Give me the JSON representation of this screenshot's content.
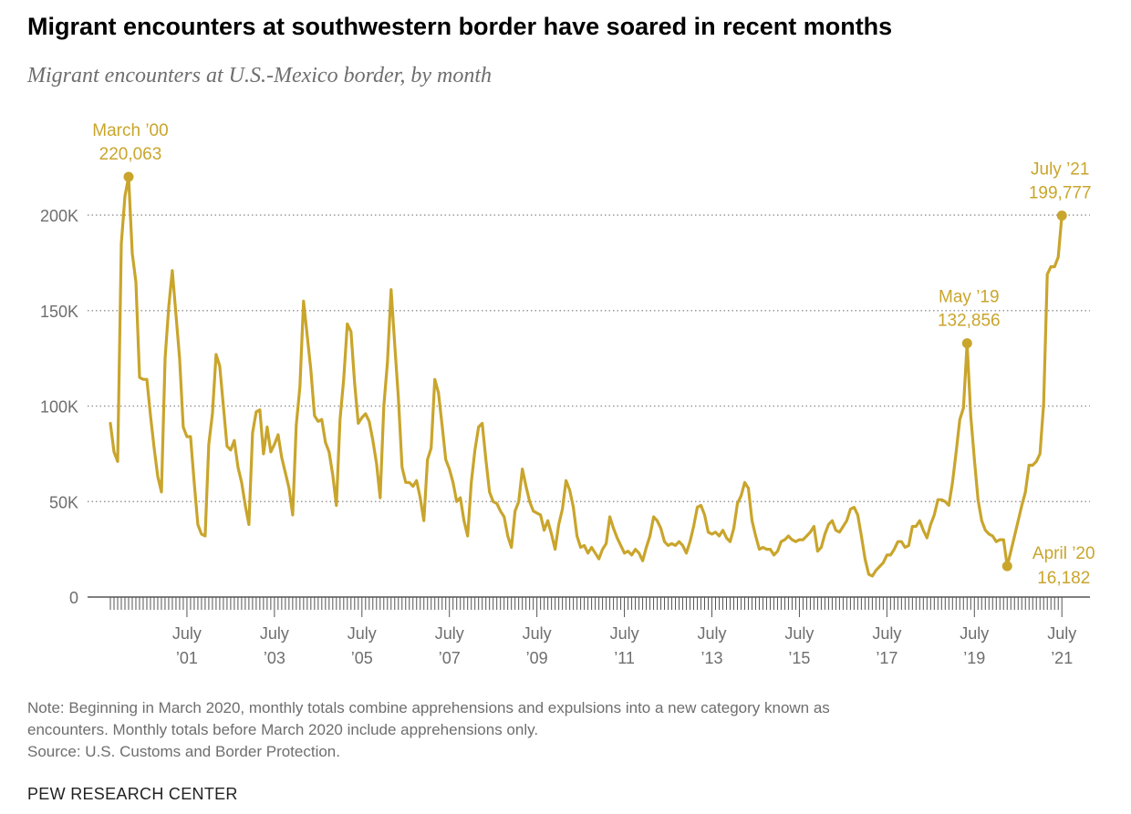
{
  "title": "Migrant encounters at southwestern border have soared in recent months",
  "subtitle": "Migrant encounters at U.S.-Mexico border, by month",
  "note_lines": [
    "Note: Beginning in March 2020, monthly totals combine apprehensions and expulsions into a new category known as",
    "encounters. Monthly totals before March 2020 include apprehensions only.",
    "Source: U.S. Customs and Border Protection."
  ],
  "brand": "PEW RESEARCH CENTER",
  "colors": {
    "line": "#c9a52c",
    "grid": "#9a9a9a",
    "axis": "#555555",
    "text": "#6e6e6e"
  },
  "chart_data": {
    "type": "line",
    "title": "Migrant encounters at southwestern border have soared in recent months",
    "subtitle": "Migrant encounters at U.S.-Mexico border, by month",
    "xlabel": "",
    "ylabel": "",
    "ylim": [
      0,
      220000
    ],
    "grid": true,
    "y_ticks": [
      {
        "value": 0,
        "label": "0"
      },
      {
        "value": 50000,
        "label": "50K"
      },
      {
        "value": 100000,
        "label": "100K"
      },
      {
        "value": 150000,
        "label": "150K"
      },
      {
        "value": 200000,
        "label": "200K"
      }
    ],
    "x_ticks": [
      {
        "month_index": 21,
        "line1": "July",
        "line2": "’01"
      },
      {
        "month_index": 45,
        "line1": "July",
        "line2": "’03"
      },
      {
        "month_index": 69,
        "line1": "July",
        "line2": "’05"
      },
      {
        "month_index": 93,
        "line1": "July",
        "line2": "’07"
      },
      {
        "month_index": 117,
        "line1": "July",
        "line2": "’09"
      },
      {
        "month_index": 141,
        "line1": "July",
        "line2": "’11"
      },
      {
        "month_index": 165,
        "line1": "July",
        "line2": "’13"
      },
      {
        "month_index": 189,
        "line1": "July",
        "line2": "’15"
      },
      {
        "month_index": 213,
        "line1": "July",
        "line2": "’17"
      },
      {
        "month_index": 237,
        "line1": "July",
        "line2": "’19"
      },
      {
        "month_index": 261,
        "line1": "July",
        "line2": "’21"
      }
    ],
    "x_start": "2000-01",
    "x_end": "2021-07",
    "series": [
      {
        "name": "Migrant encounters",
        "keypoints": [
          [
            0,
            91000
          ],
          [
            1,
            76000
          ],
          [
            2,
            71000
          ],
          [
            3,
            185000
          ],
          [
            4,
            210000
          ],
          [
            5,
            220063
          ],
          [
            6,
            180000
          ],
          [
            7,
            165000
          ],
          [
            8,
            115000
          ],
          [
            9,
            114000
          ],
          [
            10,
            114000
          ],
          [
            11,
            95000
          ],
          [
            12,
            78000
          ],
          [
            13,
            63000
          ],
          [
            14,
            55000
          ],
          [
            15,
            125000
          ],
          [
            16,
            152000
          ],
          [
            17,
            171000
          ],
          [
            18,
            148000
          ],
          [
            19,
            125000
          ],
          [
            20,
            89000
          ],
          [
            21,
            84000
          ],
          [
            22,
            84000
          ],
          [
            23,
            60000
          ],
          [
            24,
            38000
          ],
          [
            25,
            33000
          ],
          [
            26,
            32000
          ],
          [
            27,
            80000
          ],
          [
            28,
            96000
          ],
          [
            29,
            127000
          ],
          [
            30,
            121000
          ],
          [
            31,
            100000
          ],
          [
            32,
            79000
          ],
          [
            33,
            77000
          ],
          [
            34,
            82000
          ],
          [
            35,
            68000
          ],
          [
            36,
            60000
          ],
          [
            37,
            48000
          ],
          [
            38,
            38000
          ],
          [
            39,
            86000
          ],
          [
            40,
            97000
          ],
          [
            41,
            98000
          ],
          [
            42,
            75000
          ],
          [
            43,
            89000
          ],
          [
            44,
            76000
          ],
          [
            45,
            80000
          ],
          [
            46,
            85000
          ],
          [
            47,
            73000
          ],
          [
            48,
            65000
          ],
          [
            49,
            57000
          ],
          [
            50,
            43000
          ],
          [
            51,
            90000
          ],
          [
            52,
            110000
          ],
          [
            53,
            155000
          ],
          [
            54,
            137000
          ],
          [
            55,
            119000
          ],
          [
            56,
            95000
          ],
          [
            57,
            92000
          ],
          [
            58,
            93000
          ],
          [
            59,
            81000
          ],
          [
            60,
            76000
          ],
          [
            61,
            64000
          ],
          [
            62,
            48000
          ],
          [
            63,
            93000
          ],
          [
            64,
            114000
          ],
          [
            65,
            143000
          ],
          [
            66,
            139000
          ],
          [
            67,
            112000
          ],
          [
            68,
            91000
          ],
          [
            69,
            94000
          ],
          [
            70,
            96000
          ],
          [
            71,
            92000
          ],
          [
            72,
            82000
          ],
          [
            73,
            70000
          ],
          [
            74,
            52000
          ],
          [
            75,
            100000
          ],
          [
            76,
            123000
          ],
          [
            77,
            161000
          ],
          [
            78,
            132000
          ],
          [
            79,
            104000
          ],
          [
            80,
            68000
          ],
          [
            81,
            60000
          ],
          [
            82,
            60000
          ],
          [
            83,
            58000
          ],
          [
            84,
            61000
          ],
          [
            85,
            52000
          ],
          [
            86,
            40000
          ],
          [
            87,
            72000
          ],
          [
            88,
            78000
          ],
          [
            89,
            114000
          ],
          [
            90,
            107000
          ],
          [
            91,
            90000
          ],
          [
            92,
            72000
          ],
          [
            93,
            67000
          ],
          [
            94,
            60000
          ],
          [
            95,
            50000
          ],
          [
            96,
            52000
          ],
          [
            97,
            40000
          ],
          [
            98,
            32000
          ],
          [
            99,
            60000
          ],
          [
            100,
            77000
          ],
          [
            101,
            89000
          ],
          [
            102,
            91000
          ],
          [
            103,
            72000
          ],
          [
            104,
            55000
          ],
          [
            105,
            50000
          ],
          [
            106,
            49000
          ],
          [
            107,
            45000
          ],
          [
            108,
            42000
          ],
          [
            109,
            32000
          ],
          [
            110,
            26000
          ],
          [
            111,
            45000
          ],
          [
            112,
            50000
          ],
          [
            113,
            67000
          ],
          [
            114,
            58000
          ],
          [
            115,
            50000
          ],
          [
            116,
            45000
          ],
          [
            117,
            44000
          ],
          [
            118,
            43000
          ],
          [
            119,
            35000
          ],
          [
            120,
            40000
          ],
          [
            121,
            33000
          ],
          [
            122,
            25000
          ],
          [
            123,
            38000
          ],
          [
            124,
            46000
          ],
          [
            125,
            61000
          ],
          [
            126,
            56000
          ],
          [
            127,
            47000
          ],
          [
            128,
            32000
          ],
          [
            129,
            26000
          ],
          [
            130,
            27000
          ],
          [
            131,
            23000
          ],
          [
            132,
            26000
          ],
          [
            133,
            23000
          ],
          [
            134,
            20000
          ],
          [
            135,
            25000
          ],
          [
            136,
            28000
          ],
          [
            137,
            42000
          ],
          [
            138,
            36000
          ],
          [
            139,
            31000
          ],
          [
            140,
            27000
          ],
          [
            141,
            23000
          ],
          [
            142,
            24000
          ],
          [
            143,
            22000
          ],
          [
            144,
            25000
          ],
          [
            145,
            23000
          ],
          [
            146,
            19000
          ],
          [
            147,
            26000
          ],
          [
            148,
            32000
          ],
          [
            149,
            42000
          ],
          [
            150,
            40000
          ],
          [
            151,
            36000
          ],
          [
            152,
            29000
          ],
          [
            153,
            27000
          ],
          [
            154,
            28000
          ],
          [
            155,
            27000
          ],
          [
            156,
            29000
          ],
          [
            157,
            27000
          ],
          [
            158,
            23000
          ],
          [
            159,
            29000
          ],
          [
            160,
            37000
          ],
          [
            161,
            47000
          ],
          [
            162,
            48000
          ],
          [
            163,
            43000
          ],
          [
            164,
            34000
          ],
          [
            165,
            33000
          ],
          [
            166,
            34000
          ],
          [
            167,
            32000
          ],
          [
            168,
            35000
          ],
          [
            169,
            31000
          ],
          [
            170,
            29000
          ],
          [
            171,
            36000
          ],
          [
            172,
            49000
          ],
          [
            173,
            53000
          ],
          [
            174,
            60000
          ],
          [
            175,
            57000
          ],
          [
            176,
            40000
          ],
          [
            177,
            32000
          ],
          [
            178,
            25000
          ],
          [
            179,
            26000
          ],
          [
            180,
            25000
          ],
          [
            181,
            25000
          ],
          [
            182,
            22000
          ],
          [
            183,
            24000
          ],
          [
            184,
            29000
          ],
          [
            185,
            30000
          ],
          [
            186,
            32000
          ],
          [
            187,
            30000
          ],
          [
            188,
            29000
          ],
          [
            189,
            30000
          ],
          [
            190,
            30000
          ],
          [
            191,
            32000
          ],
          [
            192,
            34000
          ],
          [
            193,
            37000
          ],
          [
            194,
            24000
          ],
          [
            195,
            26000
          ],
          [
            196,
            33000
          ],
          [
            197,
            38000
          ],
          [
            198,
            40000
          ],
          [
            199,
            35000
          ],
          [
            200,
            34000
          ],
          [
            201,
            37000
          ],
          [
            202,
            40000
          ],
          [
            203,
            46000
          ],
          [
            204,
            47000
          ],
          [
            205,
            43000
          ],
          [
            206,
            32000
          ],
          [
            207,
            20000
          ],
          [
            208,
            12000
          ],
          [
            209,
            11000
          ],
          [
            210,
            14000
          ],
          [
            211,
            16000
          ],
          [
            212,
            18000
          ],
          [
            213,
            22000
          ],
          [
            214,
            22000
          ],
          [
            215,
            25000
          ],
          [
            216,
            29000
          ],
          [
            217,
            29000
          ],
          [
            218,
            26000
          ],
          [
            219,
            27000
          ],
          [
            220,
            37000
          ],
          [
            221,
            37000
          ],
          [
            222,
            40000
          ],
          [
            223,
            35000
          ],
          [
            224,
            31000
          ],
          [
            225,
            38000
          ],
          [
            226,
            43000
          ],
          [
            227,
            51000
          ],
          [
            228,
            51000
          ],
          [
            229,
            50000
          ],
          [
            230,
            48000
          ],
          [
            231,
            60000
          ],
          [
            232,
            76000
          ],
          [
            233,
            93000
          ],
          [
            234,
            99000
          ],
          [
            235,
            132856
          ],
          [
            236,
            95000
          ],
          [
            237,
            72000
          ],
          [
            238,
            51000
          ],
          [
            239,
            40000
          ],
          [
            240,
            35000
          ],
          [
            241,
            33000
          ],
          [
            242,
            32000
          ],
          [
            243,
            29000
          ],
          [
            244,
            30000
          ],
          [
            245,
            30000
          ],
          [
            246,
            16182
          ],
          [
            247,
            24000
          ],
          [
            248,
            32000
          ],
          [
            249,
            40000
          ],
          [
            250,
            48000
          ],
          [
            251,
            55000
          ],
          [
            252,
            69000
          ],
          [
            253,
            69000
          ],
          [
            254,
            71000
          ],
          [
            255,
            75000
          ],
          [
            256,
            101000
          ],
          [
            257,
            169000
          ],
          [
            258,
            173000
          ],
          [
            259,
            173000
          ],
          [
            260,
            178000
          ],
          [
            261,
            199777
          ]
        ]
      }
    ],
    "annotations": [
      {
        "month_index": 5,
        "value": 220063,
        "line1": "March ’00",
        "line2": "220,063",
        "anchor": "above"
      },
      {
        "month_index": 235,
        "value": 132856,
        "line1": "May ’19",
        "line2": "132,856",
        "anchor": "above"
      },
      {
        "month_index": 246,
        "value": 16182,
        "line1": "April ’20",
        "line2": "16,182",
        "anchor": "right"
      },
      {
        "month_index": 261,
        "value": 199777,
        "line1": "July ’21",
        "line2": "199,777",
        "anchor": "above"
      }
    ]
  }
}
